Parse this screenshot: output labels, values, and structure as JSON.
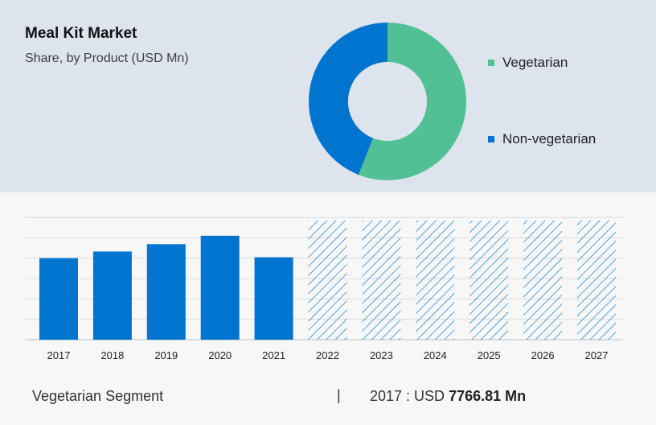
{
  "chart_data": [
    {
      "type": "pie",
      "title": "Meal Kit Market",
      "subtitle": "Share, by Product (USD Mn)",
      "labels": [
        "Vegetarian",
        "Non-vegetarian"
      ],
      "values": [
        56,
        44
      ],
      "colors": [
        "#52c095",
        "#0074cf"
      ],
      "legend_position": "right"
    },
    {
      "type": "bar",
      "categories": [
        "2017",
        "2018",
        "2019",
        "2020",
        "2021",
        "2022",
        "2023",
        "2024",
        "2025",
        "2026",
        "2027"
      ],
      "values": [
        7766.81,
        8400,
        9100,
        9900,
        7850,
        null,
        null,
        null,
        null,
        null,
        null
      ],
      "forecast_categories": [
        "2022",
        "2023",
        "2024",
        "2025",
        "2026",
        "2027"
      ],
      "ylim": [
        0,
        12500
      ],
      "grid": true,
      "bar_color": "#0074cf"
    }
  ],
  "footer": {
    "segment": "Vegetarian Segment",
    "separator": "|",
    "year_prefix": "2017 : USD ",
    "value": "7766.81 Mn"
  }
}
